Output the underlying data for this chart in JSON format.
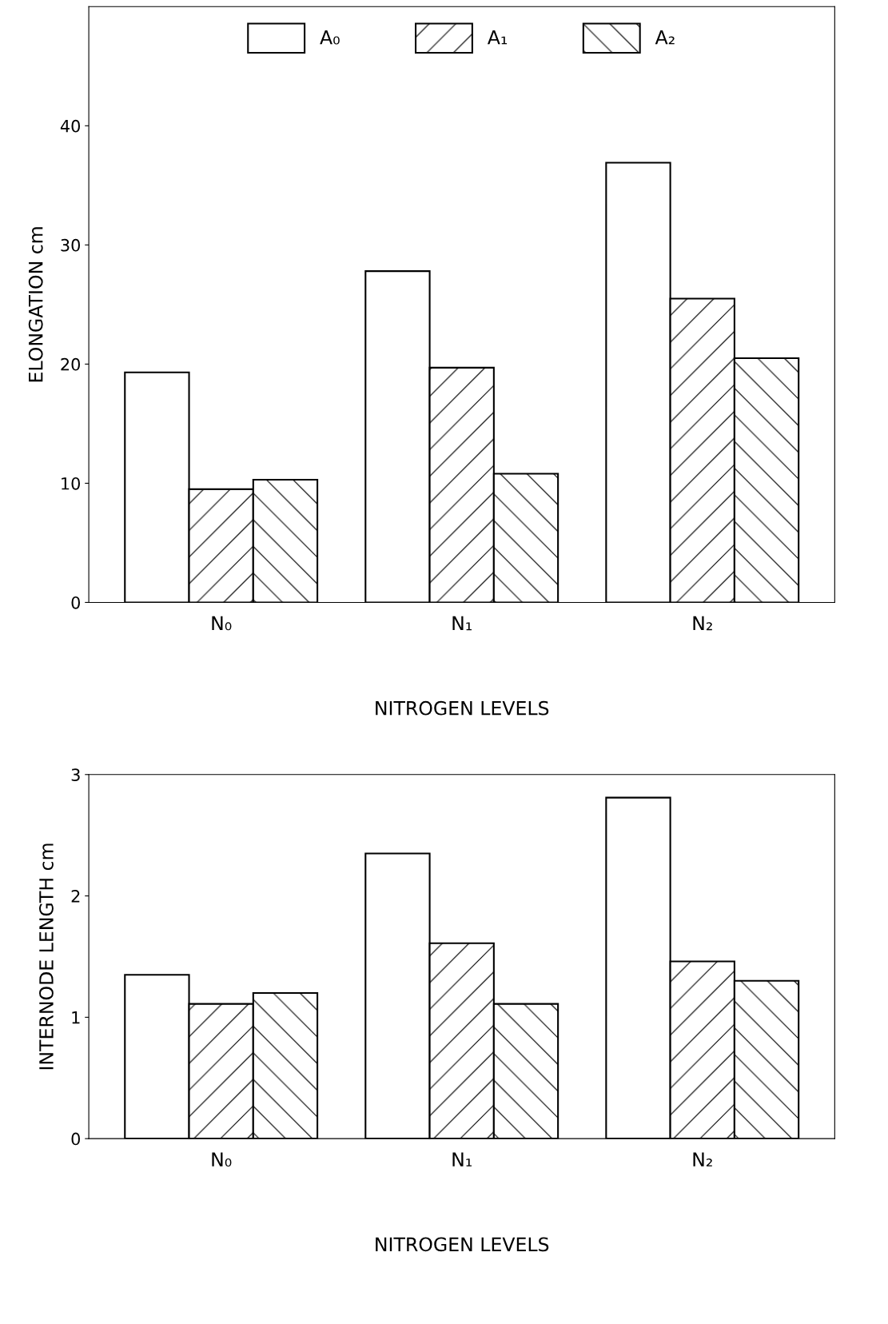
{
  "chart_data": [
    {
      "type": "bar",
      "ylabel": "ELONGATION cm",
      "xlabel": "NITROGEN LEVELS",
      "categories": [
        "N₀",
        "N₁",
        "N₂"
      ],
      "ylim": [
        0,
        50
      ],
      "yticks": [
        0,
        10,
        20,
        30,
        40
      ],
      "grid": false,
      "legend": "top",
      "series": [
        {
          "name": "A₀",
          "color": "#ffffff",
          "values": [
            19.3,
            27.8,
            36.9
          ]
        },
        {
          "name": "A₁",
          "color": "#ffffff",
          "values": [
            9.5,
            19.7,
            25.5
          ]
        },
        {
          "name": "A₂",
          "color": "#ffffff",
          "values": [
            10.3,
            10.8,
            20.5
          ]
        }
      ]
    },
    {
      "type": "bar",
      "ylabel": "INTERNODE LENGTH cm",
      "xlabel": "NITROGEN LEVELS",
      "categories": [
        "N₀",
        "N₁",
        "N₂"
      ],
      "ylim": [
        0,
        3
      ],
      "yticks": [
        0,
        1,
        2,
        3
      ],
      "grid": false,
      "legend": false,
      "series": [
        {
          "color": "#ffffff",
          "values": [
            1.35,
            2.35,
            2.81
          ]
        },
        {
          "color": "#ffffff",
          "values": [
            1.11,
            1.61,
            1.46
          ]
        },
        {
          "color": "#ffffff",
          "values": [
            1.2,
            1.11,
            1.3
          ]
        }
      ]
    }
  ]
}
